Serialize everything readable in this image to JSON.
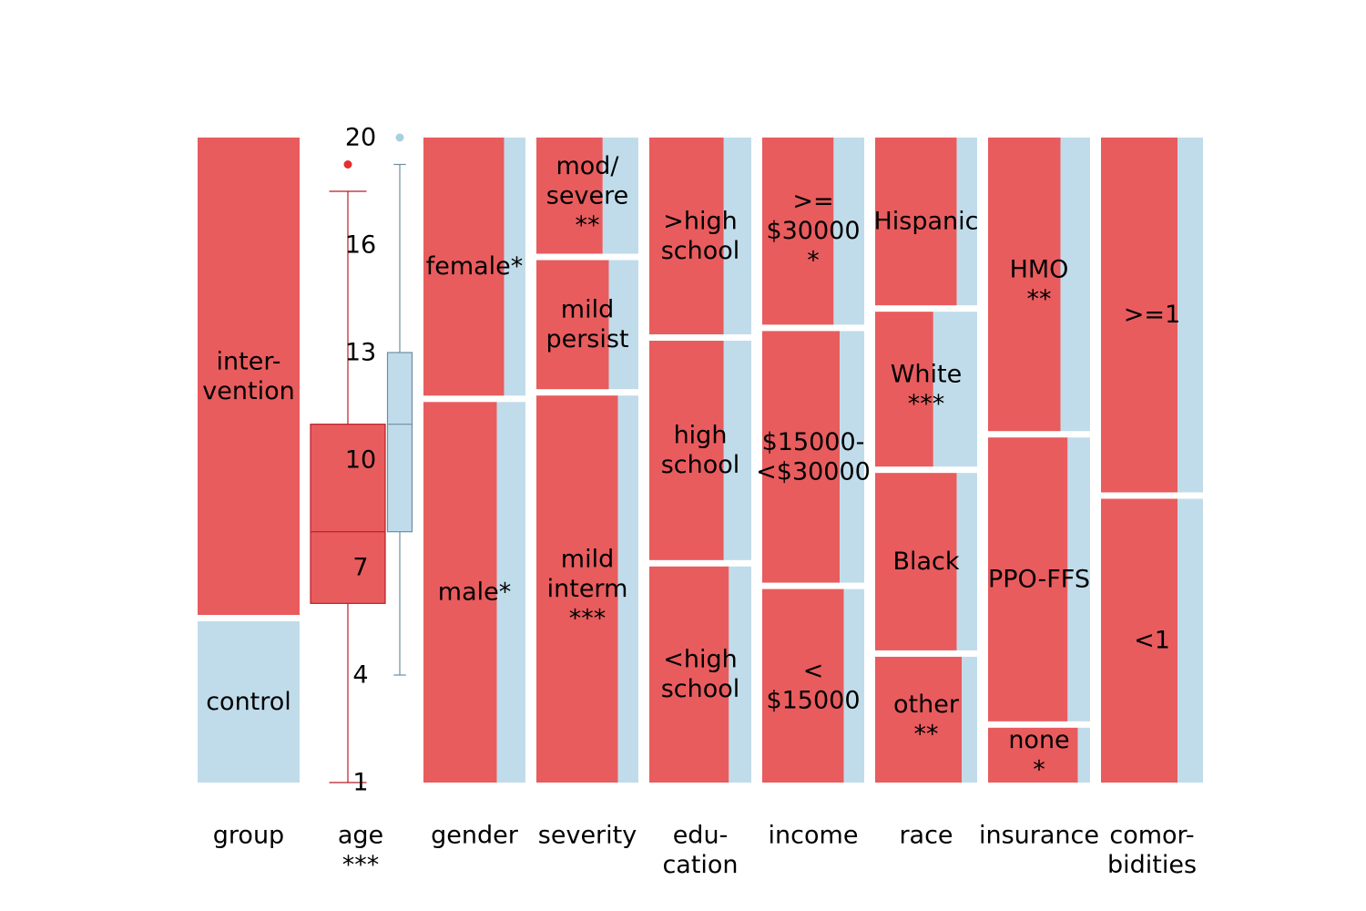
{
  "colors": {
    "intervention": "#e85c5e",
    "control": "#c0dcea",
    "age_intervention_stroke": "#b81e28",
    "age_control_stroke": "#6d8fa1",
    "age_intervention_outlier": "#e03030",
    "age_control_outlier": "#a8cfe2"
  },
  "chart_data": {
    "type": "mosaic",
    "columns": [
      {
        "label": "group",
        "kind": "group",
        "segments": [
          {
            "label": "inter-\nvention",
            "share": 0.75,
            "intervention_fraction": 1.0
          },
          {
            "label": "control",
            "share": 0.25,
            "intervention_fraction": 0.0
          }
        ]
      },
      {
        "label": "age\n***",
        "kind": "boxplot",
        "ticks": [
          1,
          4,
          7,
          10,
          13,
          16,
          20
        ],
        "ticks_position": "1,4,7,10,13,16,20",
        "intervention": {
          "whisker_low": 1,
          "q1": 6,
          "median": 8,
          "q3": 11,
          "whisker_high": 18,
          "outliers": [
            19
          ]
        },
        "control": {
          "whisker_low": 4,
          "q1": 8,
          "median": 11,
          "q3": 13,
          "whisker_high": 19,
          "outliers": [
            20
          ]
        }
      },
      {
        "label": "gender",
        "kind": "mosaic",
        "segments": [
          {
            "label": "female*",
            "share": 0.41,
            "intervention_fraction": 0.79
          },
          {
            "label": "male*",
            "share": 0.59,
            "intervention_fraction": 0.72
          }
        ]
      },
      {
        "label": "severity",
        "kind": "mosaic",
        "segments": [
          {
            "label": "mod/\nsevere\n**",
            "share": 0.19,
            "intervention_fraction": 0.65
          },
          {
            "label": "mild\npersist",
            "share": 0.21,
            "intervention_fraction": 0.71
          },
          {
            "label": "mild\ninterm\n***",
            "share": 0.6,
            "intervention_fraction": 0.8
          }
        ]
      },
      {
        "label": "edu-\ncation",
        "kind": "mosaic",
        "segments": [
          {
            "label": ">high\nschool",
            "share": 0.315,
            "intervention_fraction": 0.73
          },
          {
            "label": "high\nschool",
            "share": 0.35,
            "intervention_fraction": 0.73
          },
          {
            "label": "<high\nschool",
            "share": 0.335,
            "intervention_fraction": 0.78
          }
        ]
      },
      {
        "label": "income",
        "kind": "mosaic",
        "segments": [
          {
            "label": ">=\n$30000\n*",
            "share": 0.3,
            "intervention_fraction": 0.7
          },
          {
            "label": "$15000-\n<$30000",
            "share": 0.4,
            "intervention_fraction": 0.76
          },
          {
            "label": "<\n$15000",
            "share": 0.3,
            "intervention_fraction": 0.8
          }
        ]
      },
      {
        "label": "race",
        "kind": "mosaic",
        "segments": [
          {
            "label": "Hispanic",
            "share": 0.27,
            "intervention_fraction": 0.8
          },
          {
            "label": "White\n***",
            "share": 0.25,
            "intervention_fraction": 0.57
          },
          {
            "label": "Black",
            "share": 0.285,
            "intervention_fraction": 0.8
          },
          {
            "label": "other\n**",
            "share": 0.195,
            "intervention_fraction": 0.85
          }
        ]
      },
      {
        "label": "insurance",
        "kind": "mosaic",
        "segments": [
          {
            "label": "HMO\n**",
            "share": 0.465,
            "intervention_fraction": 0.71
          },
          {
            "label": "PPO-FFS",
            "share": 0.45,
            "intervention_fraction": 0.78
          },
          {
            "label": "none\n*",
            "share": 0.08,
            "intervention_fraction": 0.88
          }
        ]
      },
      {
        "label": "comor-\nbidities",
        "kind": "mosaic",
        "segments": [
          {
            "label": ">=1",
            "share": 0.56,
            "intervention_fraction": 0.75
          },
          {
            "label": "<1",
            "share": 0.43,
            "intervention_fraction": 0.75
          }
        ]
      }
    ]
  }
}
